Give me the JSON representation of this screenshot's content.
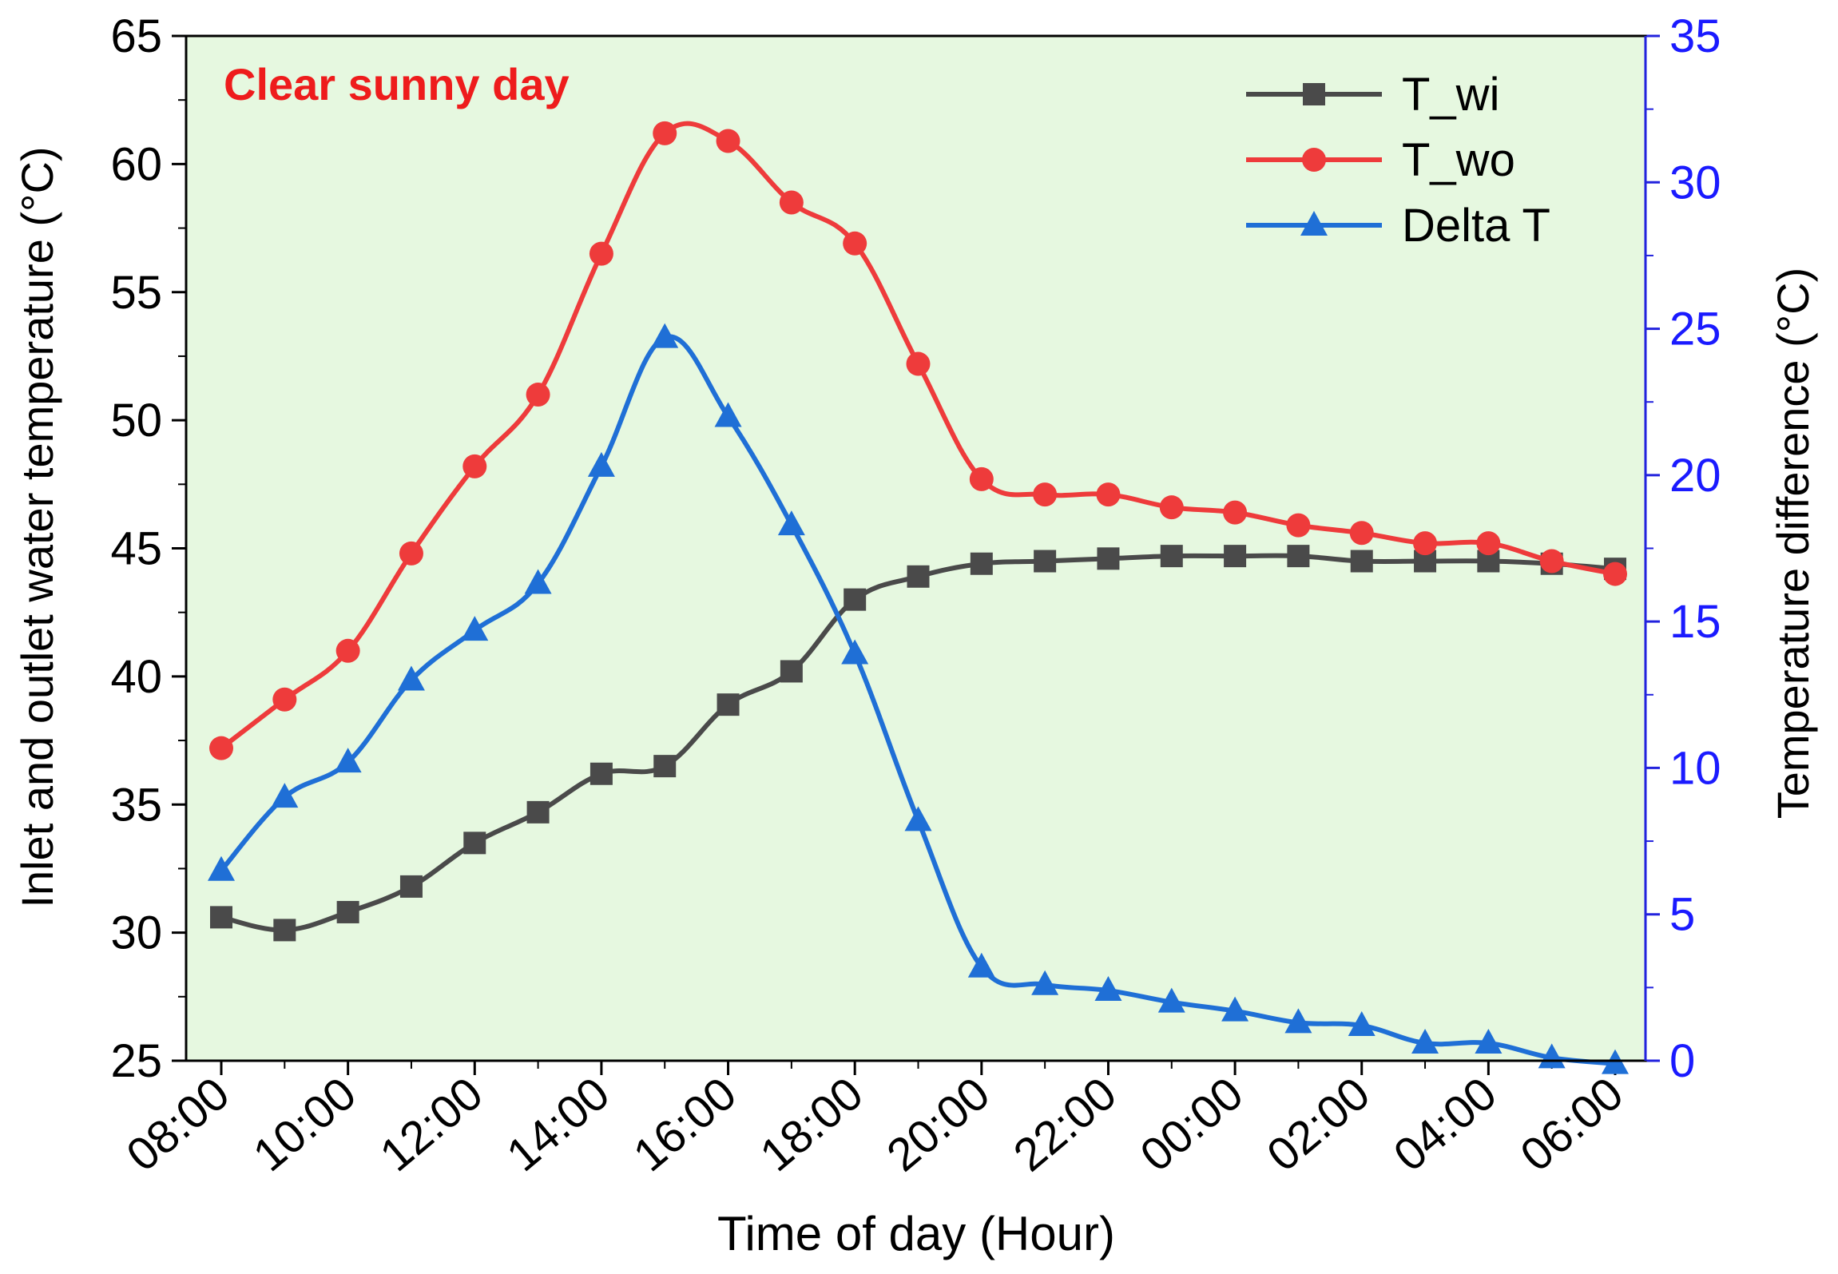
{
  "chart_data": {
    "type": "line",
    "annotation": "Clear sunny day",
    "xlabel": "Time of day (Hour)",
    "ylabel_left": "Inlet and outlet water temperature  (°C)",
    "ylabel_right": "Temperature difference (°C)",
    "categories": [
      "08:00",
      "09:00",
      "10:00",
      "11:00",
      "12:00",
      "13:00",
      "14:00",
      "15:00",
      "16:00",
      "17:00",
      "18:00",
      "19:00",
      "20:00",
      "21:00",
      "22:00",
      "23:00",
      "00:00",
      "01:00",
      "02:00",
      "03:00",
      "04:00",
      "05:00",
      "06:00"
    ],
    "x_tick_labels": [
      "08:00",
      "10:00",
      "12:00",
      "14:00",
      "16:00",
      "18:00",
      "20:00",
      "22:00",
      "00:00",
      "02:00",
      "04:00",
      "06:00"
    ],
    "ylim_left": [
      25,
      65
    ],
    "yticks_left": [
      "25",
      "30",
      "35",
      "40",
      "45",
      "50",
      "55",
      "60",
      "65"
    ],
    "ylim_right": [
      0,
      35
    ],
    "yticks_right": [
      "0",
      "5",
      "10",
      "15",
      "20",
      "25",
      "30",
      "35"
    ],
    "background_color": "#e6f8e0",
    "legend_position": "top-right",
    "series": [
      {
        "name": "T_wi",
        "axis": "left",
        "marker": "square",
        "color": "#4a4a4a",
        "values": [
          30.6,
          30.1,
          30.8,
          31.8,
          33.5,
          34.7,
          36.2,
          36.5,
          38.9,
          40.2,
          43.0,
          43.9,
          44.4,
          44.5,
          44.6,
          44.7,
          44.7,
          44.7,
          44.5,
          44.5,
          44.5,
          44.4,
          44.2
        ]
      },
      {
        "name": "T_wo",
        "axis": "left",
        "marker": "circle",
        "color": "#ee3b3b",
        "values": [
          37.2,
          39.1,
          41.0,
          44.8,
          48.2,
          51.0,
          56.5,
          61.2,
          60.9,
          58.5,
          56.9,
          52.2,
          47.7,
          47.1,
          47.1,
          46.6,
          46.4,
          45.9,
          45.6,
          45.2,
          45.2,
          44.5,
          44.0
        ]
      },
      {
        "name": "Delta T",
        "axis": "right",
        "marker": "triangle",
        "color": "#1f6fd6",
        "values": [
          6.5,
          9.0,
          10.2,
          13.0,
          14.7,
          16.3,
          20.3,
          24.7,
          22.0,
          18.3,
          13.9,
          8.2,
          3.2,
          2.6,
          2.4,
          2.0,
          1.7,
          1.3,
          1.2,
          0.6,
          0.6,
          0.1,
          -0.1
        ]
      }
    ]
  }
}
